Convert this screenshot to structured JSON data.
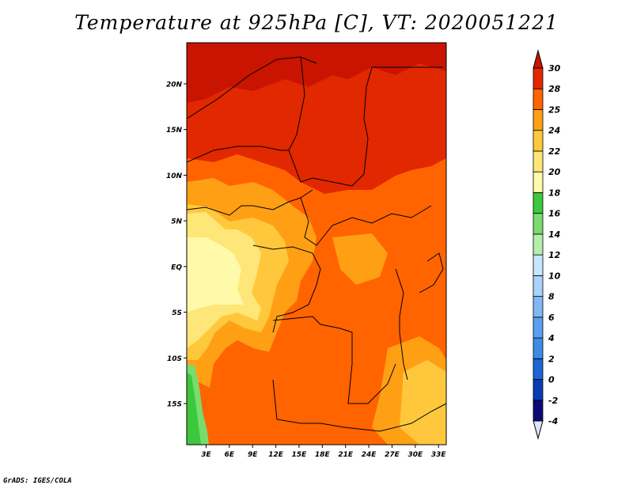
{
  "title": "Temperature at 925hPa [C], VT: 2020051221",
  "footer": "GrADS: IGES/COLA",
  "map": {
    "lat_labels": [
      "20N",
      "15N",
      "10N",
      "5N",
      "EQ",
      "5S",
      "10S",
      "15S"
    ],
    "lat_values": [
      20,
      15,
      10,
      5,
      0,
      -5,
      -10,
      -15
    ],
    "lon_labels": [
      "3E",
      "6E",
      "9E",
      "12E",
      "15E",
      "18E",
      "21E",
      "24E",
      "27E",
      "30E",
      "33E"
    ],
    "lon_values": [
      3,
      6,
      9,
      12,
      15,
      18,
      21,
      24,
      27,
      30,
      33
    ],
    "extent": {
      "lon_min": 0.5,
      "lon_max": 34,
      "lat_min": -19.5,
      "lat_max": 24.5
    }
  },
  "colorbar": {
    "levels": [
      "-4",
      "-2",
      "0",
      "2",
      "4",
      "6",
      "8",
      "10",
      "12",
      "14",
      "16",
      "18",
      "20",
      "22",
      "24",
      "25",
      "28",
      "30"
    ],
    "colors": [
      "#e1e1ff",
      "#0a0a78",
      "#0a3cb4",
      "#1e64d2",
      "#3c8ce6",
      "#5aa0f0",
      "#82b9f5",
      "#aad2fa",
      "#c8e6ff",
      "#b4f0aa",
      "#78dc6e",
      "#3cc83c",
      "#fffaaa",
      "#ffe678",
      "#ffc83c",
      "#ffa014",
      "#ff6400",
      "#e12800",
      "#c81400"
    ]
  }
}
